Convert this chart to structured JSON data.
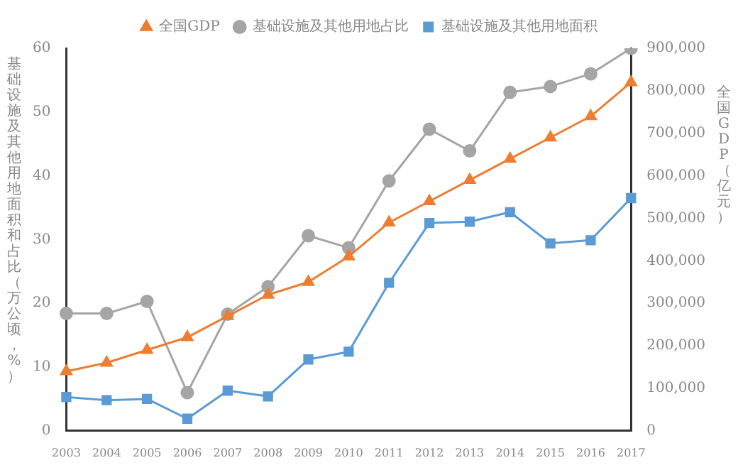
{
  "chart_data": {
    "type": "line",
    "ylabel": "基础设施及其他用地面积和占比（万公顷，%）",
    "y2label": "全国GDP（亿元）",
    "categories": [
      "2003",
      "2004",
      "2005",
      "2006",
      "2007",
      "2008",
      "2009",
      "2010",
      "2011",
      "2012",
      "2013",
      "2014",
      "2015",
      "2016",
      "2017"
    ],
    "series": [
      {
        "name": "基础设施及其他用地面积",
        "color": "#5b9bd5",
        "marker": "square",
        "values": [
          5.3,
          4.8,
          5.0,
          1.9,
          6.3,
          5.4,
          11.2,
          12.4,
          23.2,
          32.6,
          32.8,
          34.3,
          29.4,
          29.9,
          36.5
        ]
      },
      {
        "name": "基础设施及其他用地占比",
        "color": "#a5a5a5",
        "marker": "circle",
        "values": [
          18.4,
          18.4,
          20.3,
          6.0,
          18.3,
          22.6,
          30.6,
          28.7,
          39.2,
          47.3,
          43.9,
          53.1,
          54.0,
          56.0,
          60.0
        ]
      },
      {
        "name": "全国GDP",
        "color": "#ed7d31",
        "marker": "triangle",
        "axis": "y2",
        "values": [
          140000,
          160000,
          190000,
          220000,
          270000,
          320000,
          350000,
          410000,
          490000,
          540000,
          590000,
          640000,
          690000,
          740000,
          820000
        ]
      }
    ],
    "ylim": [
      0,
      60
    ],
    "yticks": [
      0,
      10,
      20,
      30,
      40,
      50,
      60
    ],
    "y2lim": [
      0,
      900000
    ],
    "y2ticks": [
      0,
      {
        "value": 100000,
        "label": "100,000"
      },
      {
        "value": 200000,
        "label": "200,000"
      },
      {
        "value": 300000,
        "label": "300,000"
      },
      {
        "value": 400000,
        "label": "400,000"
      },
      {
        "value": 500000,
        "label": "500,000"
      },
      {
        "value": 600000,
        "label": "600,000"
      },
      {
        "value": 700000,
        "label": "700,000"
      },
      {
        "value": 800000,
        "label": "800,000"
      },
      {
        "value": 900000,
        "label": "900,000"
      }
    ],
    "grid": false,
    "legend": "top"
  }
}
